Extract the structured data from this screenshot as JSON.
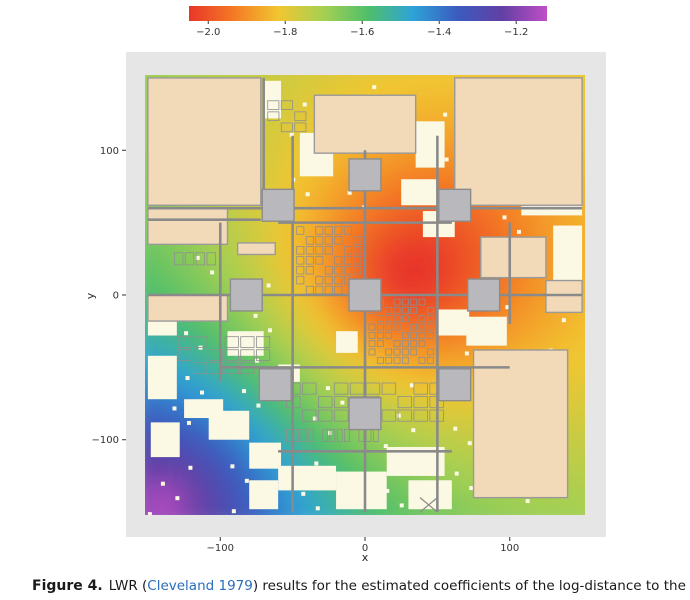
{
  "chart_data": {
    "type": "heatmap",
    "title": "",
    "xlabel": "x",
    "ylabel": "y",
    "xlim": [
      -152,
      152
    ],
    "ylim": [
      -152,
      152
    ],
    "x_ticks": [
      -100,
      0,
      100
    ],
    "y_ticks": [
      -100,
      0,
      100
    ],
    "x_tick_labels": [
      "−100",
      "0",
      "100"
    ],
    "y_tick_labels": [
      "−100",
      "0",
      "100"
    ],
    "grid": false,
    "colorbar": {
      "placement": "top",
      "range": [
        -2.05,
        -1.12
      ],
      "ticks": [
        -2.0,
        -1.8,
        -1.6,
        -1.4,
        -1.2
      ],
      "tick_labels": [
        "−2.0",
        "−1.8",
        "−1.6",
        "−1.4",
        "−1.2"
      ],
      "colors": [
        "#e8362a",
        "#f47a24",
        "#f2c631",
        "#a6d052",
        "#4fbf6a",
        "#2ea3d8",
        "#3b5bbf",
        "#6240a4",
        "#c04ec7"
      ]
    },
    "surface": {
      "description_values": "estimated coefficient",
      "minimum": {
        "x": 30,
        "y": 15,
        "value": -2.05
      },
      "maximum": {
        "x": -140,
        "y": -145,
        "value": -1.12
      }
    },
    "colors": {
      "panel_background": "#e6e6e6",
      "large_block": "#f2d9b8",
      "empty_area": "#fbf8e4",
      "road": "#8a8a8a",
      "square_block": "#b9b9bd"
    }
  },
  "caption": {
    "label": "Figure 4.",
    "text_before": "LWR (",
    "citation": "Cleveland 1979",
    "text_after": ") results for the estimated coefficients of the log-distance to the city"
  }
}
